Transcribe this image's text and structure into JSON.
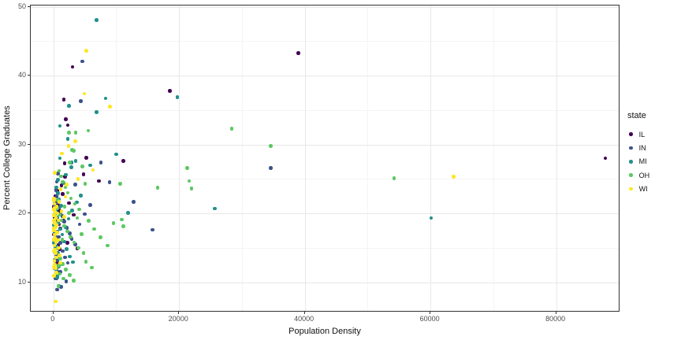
{
  "figure": {
    "background": "#FFFFFF",
    "panel_border_color": "#333333",
    "major_grid_color": "#E8E8E8",
    "minor_grid_color": "#F4F4F4",
    "tick_label_color": "#4D4D4D"
  },
  "chart_data": {
    "type": "scatter",
    "title": "",
    "xlabel": "Population Density",
    "ylabel": "Percent College Graduates",
    "legend_title": "state",
    "legend_position": "right",
    "grid": "on",
    "x_domain": [
      -3600,
      90200
    ],
    "y_domain": [
      5.6,
      50.2
    ],
    "x_ticks": [
      0,
      20000,
      40000,
      60000,
      80000
    ],
    "x_tick_labels": [
      "0",
      "20000",
      "40000",
      "60000",
      "80000"
    ],
    "x_minor_ticks": [
      10000,
      30000,
      50000,
      70000
    ],
    "y_ticks": [
      10,
      20,
      30,
      40,
      50
    ],
    "y_tick_labels": [
      "10",
      "20",
      "30",
      "40",
      "50"
    ],
    "y_minor_ticks": [
      15,
      25,
      35,
      45
    ],
    "series": [
      {
        "name": "IL",
        "color": "#440154",
        "points": [
          [
            39000,
            43.3
          ],
          [
            87800,
            28.0
          ],
          [
            18500,
            37.8
          ],
          [
            3050,
            41.3
          ],
          [
            1670,
            36.5
          ],
          [
            2010,
            33.7
          ],
          [
            2300,
            32.8
          ],
          [
            11100,
            27.6
          ],
          [
            5230,
            28.1
          ],
          [
            1800,
            27.3
          ],
          [
            1890,
            25.3
          ],
          [
            4810,
            25.7
          ],
          [
            7240,
            24.7
          ],
          [
            2500,
            21.5
          ],
          [
            3200,
            19.8
          ],
          [
            2800,
            16.5
          ],
          [
            3800,
            14.9
          ],
          [
            1500,
            22.8
          ],
          [
            1300,
            24.1
          ],
          [
            600,
            23.3
          ],
          [
            200,
            19.3
          ],
          [
            150,
            18.1
          ],
          [
            750,
            21.2
          ],
          [
            950,
            20.4
          ],
          [
            1600,
            18.9
          ],
          [
            2200,
            15.7
          ],
          [
            280,
            15.1
          ],
          [
            420,
            12.7
          ],
          [
            580,
            11.5
          ],
          [
            130,
            16.9
          ],
          [
            90,
            21.0
          ],
          [
            300,
            22.5
          ],
          [
            450,
            21.8
          ],
          [
            700,
            19.0
          ],
          [
            900,
            18.4
          ],
          [
            1100,
            17.8
          ],
          [
            250,
            17.2
          ],
          [
            400,
            16.6
          ],
          [
            800,
            15.4
          ],
          [
            1000,
            14.8
          ],
          [
            350,
            14.2
          ],
          [
            650,
            13.0
          ],
          [
            900,
            12.4
          ],
          [
            500,
            10.6
          ]
        ]
      },
      {
        "name": "IN",
        "color": "#3B528B",
        "points": [
          [
            4600,
            42.1
          ],
          [
            4400,
            36.3
          ],
          [
            34600,
            26.6
          ],
          [
            12800,
            21.7
          ],
          [
            15800,
            17.6
          ],
          [
            7540,
            27.4
          ],
          [
            8930,
            24.5
          ],
          [
            3470,
            24.2
          ],
          [
            700,
            25.8
          ],
          [
            520,
            24.6
          ],
          [
            400,
            23.4
          ],
          [
            550,
            22.5
          ],
          [
            700,
            21.7
          ],
          [
            900,
            20.8
          ],
          [
            1150,
            20.0
          ],
          [
            350,
            19.1
          ],
          [
            500,
            18.3
          ],
          [
            680,
            17.4
          ],
          [
            880,
            16.6
          ],
          [
            1100,
            15.7
          ],
          [
            300,
            14.9
          ],
          [
            450,
            14.0
          ],
          [
            620,
            13.2
          ],
          [
            850,
            12.3
          ],
          [
            1080,
            11.5
          ],
          [
            630,
            8.9
          ],
          [
            1400,
            19.6
          ],
          [
            1750,
            18.8
          ],
          [
            2150,
            17.9
          ],
          [
            2600,
            17.1
          ],
          [
            1500,
            14.5
          ],
          [
            1850,
            13.6
          ],
          [
            2300,
            12.8
          ],
          [
            200,
            16.2
          ],
          [
            260,
            12.0
          ],
          [
            330,
            10.6
          ],
          [
            2900,
            16.3
          ],
          [
            3500,
            15.5
          ],
          [
            4200,
            18.4
          ],
          [
            5000,
            19.9
          ],
          [
            5900,
            21.2
          ],
          [
            250,
            21.0
          ],
          [
            180,
            18.9
          ],
          [
            140,
            14.4
          ],
          [
            2050,
            10.1
          ],
          [
            1250,
            9.3
          ]
        ]
      },
      {
        "name": "MI",
        "color": "#21908C",
        "points": [
          [
            6900,
            48.1
          ],
          [
            19700,
            36.9
          ],
          [
            8300,
            36.7
          ],
          [
            2510,
            35.6
          ],
          [
            6900,
            34.7
          ],
          [
            1040,
            32.7
          ],
          [
            2300,
            30.8
          ],
          [
            10000,
            28.6
          ],
          [
            1040,
            28.0
          ],
          [
            2840,
            26.7
          ],
          [
            2930,
            27.4
          ],
          [
            3560,
            27.6
          ],
          [
            5860,
            27.0
          ],
          [
            25700,
            20.7
          ],
          [
            60100,
            19.3
          ],
          [
            11900,
            20.1
          ],
          [
            700,
            24.9
          ],
          [
            1600,
            24.4
          ],
          [
            2000,
            25.6
          ],
          [
            500,
            23.8
          ],
          [
            700,
            22.9
          ],
          [
            900,
            22.0
          ],
          [
            1200,
            21.1
          ],
          [
            400,
            20.3
          ],
          [
            600,
            19.4
          ],
          [
            800,
            18.6
          ],
          [
            1100,
            17.7
          ],
          [
            1400,
            16.9
          ],
          [
            350,
            16.0
          ],
          [
            550,
            15.2
          ],
          [
            750,
            14.3
          ],
          [
            1000,
            13.5
          ],
          [
            1300,
            12.6
          ],
          [
            450,
            11.8
          ],
          [
            650,
            10.9
          ],
          [
            630,
            10.7
          ],
          [
            920,
            9.5
          ],
          [
            1750,
            15.9
          ],
          [
            2100,
            14.8
          ],
          [
            2600,
            13.7
          ],
          [
            3100,
            12.9
          ],
          [
            1900,
            18.0
          ],
          [
            2400,
            19.2
          ],
          [
            3000,
            20.4
          ],
          [
            3700,
            21.6
          ],
          [
            4400,
            22.6
          ],
          [
            150,
            21.5
          ],
          [
            250,
            19.9
          ],
          [
            200,
            17.3
          ],
          [
            300,
            14.9
          ],
          [
            170,
            13.2
          ],
          [
            90,
            18.3
          ],
          [
            120,
            15.7
          ]
        ]
      },
      {
        "name": "OH",
        "color": "#5DC863",
        "points": [
          [
            28400,
            32.3
          ],
          [
            34600,
            29.8
          ],
          [
            54200,
            25.1
          ],
          [
            21300,
            26.6
          ],
          [
            22000,
            23.6
          ],
          [
            21600,
            24.7
          ],
          [
            16600,
            23.7
          ],
          [
            10600,
            24.3
          ],
          [
            9550,
            18.6
          ],
          [
            10900,
            19.1
          ],
          [
            11100,
            18.1
          ],
          [
            5030,
            24.3
          ],
          [
            4600,
            26.8
          ],
          [
            2640,
            27.4
          ],
          [
            2510,
            31.7
          ],
          [
            3560,
            31.7
          ],
          [
            5570,
            32.0
          ],
          [
            3020,
            29.2
          ],
          [
            3220,
            29.1
          ],
          [
            900,
            26.2
          ],
          [
            1200,
            25.4
          ],
          [
            1500,
            24.6
          ],
          [
            1900,
            23.8
          ],
          [
            2300,
            23.0
          ],
          [
            2800,
            22.2
          ],
          [
            3400,
            21.4
          ],
          [
            4100,
            20.6
          ],
          [
            1000,
            19.8
          ],
          [
            1300,
            19.0
          ],
          [
            1700,
            18.2
          ],
          [
            2200,
            17.4
          ],
          [
            2700,
            16.6
          ],
          [
            3300,
            15.8
          ],
          [
            4000,
            15.0
          ],
          [
            4800,
            14.2
          ],
          [
            1100,
            13.4
          ],
          [
            1500,
            12.6
          ],
          [
            2000,
            11.8
          ],
          [
            2600,
            11.0
          ],
          [
            3200,
            10.2
          ],
          [
            800,
            9.4
          ],
          [
            5600,
            18.9
          ],
          [
            6500,
            17.7
          ],
          [
            7500,
            16.5
          ],
          [
            8600,
            15.3
          ],
          [
            5200,
            13.0
          ],
          [
            6100,
            12.1
          ],
          [
            700,
            21.9
          ],
          [
            600,
            20.7
          ],
          [
            500,
            18.5
          ],
          [
            450,
            16.1
          ],
          [
            650,
            14.9
          ],
          [
            850,
            12.4
          ],
          [
            1800,
            21.0
          ],
          [
            2500,
            20.1
          ],
          [
            3800,
            19.3
          ],
          [
            4500,
            17.0
          ],
          [
            1400,
            16.2
          ],
          [
            1600,
            10.5
          ],
          [
            950,
            11.2
          ]
        ]
      },
      {
        "name": "WI",
        "color": "#FDE725",
        "points": [
          [
            5230,
            43.6
          ],
          [
            4940,
            37.4
          ],
          [
            9000,
            35.5
          ],
          [
            3470,
            30.5
          ],
          [
            2430,
            29.8
          ],
          [
            1380,
            28.7
          ],
          [
            63700,
            25.3
          ],
          [
            6290,
            26.3
          ],
          [
            3900,
            25.0
          ],
          [
            200,
            25.9
          ],
          [
            2100,
            24.2
          ],
          [
            1150,
            23.5
          ],
          [
            100,
            22.1
          ],
          [
            150,
            21.4
          ],
          [
            220,
            20.8
          ],
          [
            300,
            20.2
          ],
          [
            90,
            19.7
          ],
          [
            180,
            19.1
          ],
          [
            260,
            18.6
          ],
          [
            350,
            18.0
          ],
          [
            120,
            17.5
          ],
          [
            200,
            16.9
          ],
          [
            280,
            16.4
          ],
          [
            400,
            15.8
          ],
          [
            140,
            15.3
          ],
          [
            240,
            14.7
          ],
          [
            330,
            14.2
          ],
          [
            450,
            13.6
          ],
          [
            160,
            13.1
          ],
          [
            260,
            12.5
          ],
          [
            380,
            12.0
          ],
          [
            500,
            11.4
          ],
          [
            110,
            20.5
          ],
          [
            420,
            19.4
          ],
          [
            520,
            18.3
          ],
          [
            610,
            17.2
          ],
          [
            700,
            16.1
          ],
          [
            820,
            15.0
          ],
          [
            950,
            13.9
          ],
          [
            1100,
            12.8
          ],
          [
            80,
            14.5
          ],
          [
            130,
            18.9
          ],
          [
            90,
            16.2
          ],
          [
            70,
            12.2
          ],
          [
            60,
            17.8
          ],
          [
            540,
            21.0
          ],
          [
            660,
            20.0
          ],
          [
            780,
            19.0
          ],
          [
            380,
            7.2
          ],
          [
            900,
            21.7
          ],
          [
            1300,
            20.3
          ],
          [
            1700,
            19.5
          ],
          [
            130,
            10.9
          ],
          [
            75,
            21.9
          ],
          [
            1900,
            22.4
          ]
        ]
      }
    ]
  }
}
